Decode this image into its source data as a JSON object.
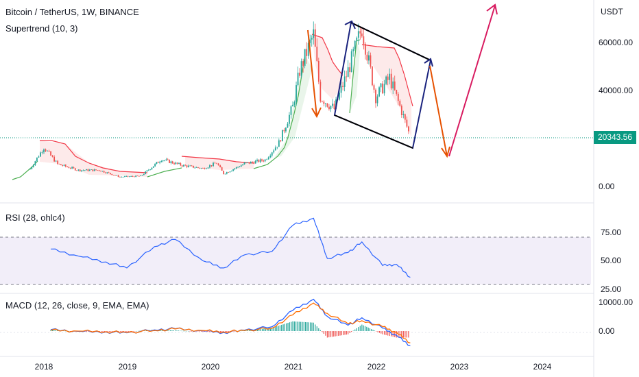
{
  "header": {
    "title": "Bitcoin / TetherUS, 1W, BINANCE",
    "indicator": "Supertrend (10, 3)",
    "currency": "USDT"
  },
  "price_badge": "20343.56",
  "rsi": {
    "title": "RSI (28, ohlc4)"
  },
  "macd": {
    "title": "MACD (12, 26, close, 9, EMA, EMA)"
  },
  "colors": {
    "up": "#26a69a",
    "down": "#ef5350",
    "supertrend_up": "#4caf50",
    "supertrend_down": "#f23645",
    "rsi": "#2962ff",
    "rsi_band": "#7e57c2",
    "macd": "#2962ff",
    "signal": "#ff6d00",
    "arrow_orange": "#e65100",
    "arrow_navy": "#1a237e",
    "arrow_pink": "#d81b60",
    "price": "#089981"
  },
  "chart_data": [
    {
      "type": "candlestick",
      "title": "Bitcoin / TetherUS, 1W, BINANCE",
      "y_axis_ticks": [
        "60000.00",
        "40000.00",
        "0.00"
      ],
      "y_axis_values": [
        60000,
        40000,
        0
      ],
      "x_axis_ticks": [
        "2018",
        "2019",
        "2020",
        "2021",
        "2022",
        "2023",
        "2024"
      ],
      "last_price": 20343.56,
      "trend_points": [
        {
          "date": "2017-11",
          "close": 7000
        },
        {
          "date": "2018-01",
          "close": 16000
        },
        {
          "date": "2018-03",
          "close": 9000
        },
        {
          "date": "2018-06",
          "close": 6500
        },
        {
          "date": "2018-09",
          "close": 6500
        },
        {
          "date": "2018-12",
          "close": 3700
        },
        {
          "date": "2019-03",
          "close": 4000
        },
        {
          "date": "2019-06",
          "close": 11000
        },
        {
          "date": "2019-09",
          "close": 8500
        },
        {
          "date": "2019-12",
          "close": 7200
        },
        {
          "date": "2020-02",
          "close": 9500
        },
        {
          "date": "2020-03",
          "close": 5000
        },
        {
          "date": "2020-06",
          "close": 9200
        },
        {
          "date": "2020-09",
          "close": 10800
        },
        {
          "date": "2020-11",
          "close": 18000
        },
        {
          "date": "2021-01",
          "close": 33000
        },
        {
          "date": "2021-02",
          "close": 48000
        },
        {
          "date": "2021-04",
          "close": 63000
        },
        {
          "date": "2021-05",
          "close": 37000
        },
        {
          "date": "2021-07",
          "close": 32000
        },
        {
          "date": "2021-09",
          "close": 48000
        },
        {
          "date": "2021-11",
          "close": 66000
        },
        {
          "date": "2022-01",
          "close": 37000
        },
        {
          "date": "2022-03",
          "close": 45000
        },
        {
          "date": "2022-05",
          "close": 29000
        },
        {
          "date": "2022-06",
          "close": 20343.56
        }
      ]
    },
    {
      "type": "line",
      "title": "RSI (28, ohlc4)",
      "y_axis_ticks": [
        "75.00",
        "50.00",
        "25.00"
      ],
      "band": [
        30,
        70
      ],
      "x": [
        "2018-02",
        "2018-06",
        "2018-10",
        "2019-01",
        "2019-05",
        "2019-08",
        "2019-12",
        "2020-03",
        "2020-06",
        "2020-10",
        "2021-01",
        "2021-04",
        "2021-06",
        "2021-09",
        "2021-11",
        "2022-02",
        "2022-04",
        "2022-06"
      ],
      "values": [
        60,
        54,
        49,
        44,
        62,
        68,
        50,
        44,
        55,
        58,
        80,
        86,
        52,
        57,
        66,
        46,
        47,
        36
      ]
    },
    {
      "type": "line",
      "title": "MACD (12, 26, close, 9, EMA, EMA)",
      "y_axis_ticks": [
        "10000.00",
        "0.00"
      ],
      "series": [
        {
          "values": [
            500,
            -100,
            -300,
            -600,
            400,
            800,
            100,
            -500,
            300,
            1500,
            7000,
            10800,
            5000,
            2000,
            4500,
            1000,
            -1500,
            -5000
          ]
        },
        {
          "values": [
            300,
            0,
            -200,
            -500,
            200,
            700,
            200,
            -300,
            200,
            1000,
            5500,
            9500,
            6000,
            2500,
            3500,
            1500,
            -500,
            -4000
          ]
        }
      ]
    }
  ]
}
